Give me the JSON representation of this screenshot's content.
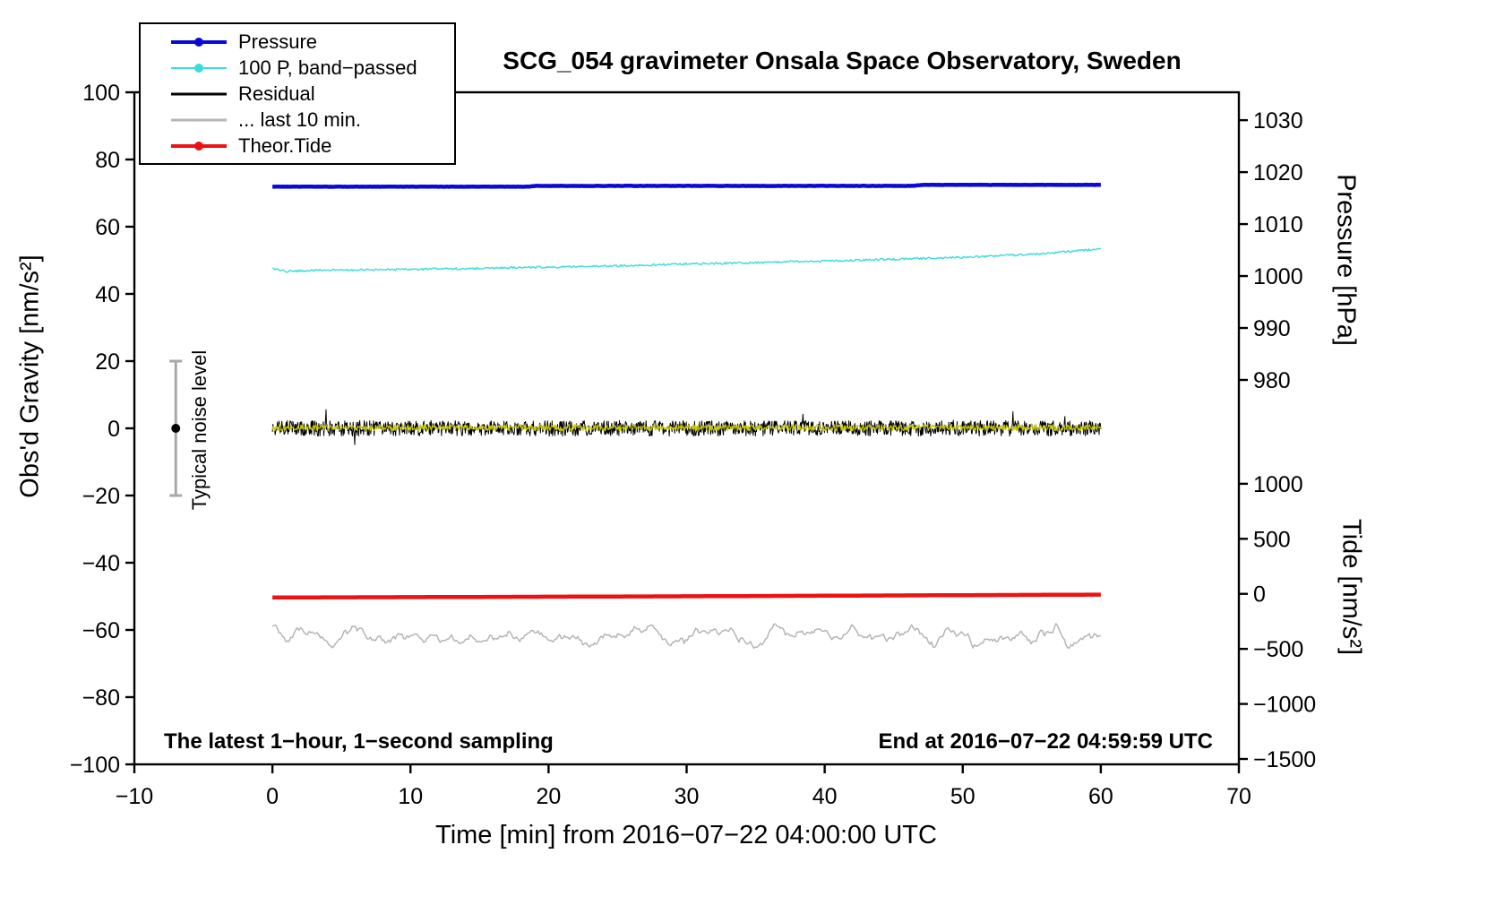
{
  "chart_data": {
    "type": "line",
    "title": "SCG_054 gravimeter Onsala Space Observatory, Sweden",
    "xlabel": "Time [min] from 2016−07−22 04:00:00 UTC",
    "ylabel": "Obs'd Gravity [nm/s²]",
    "xlim": [
      -10,
      70
    ],
    "xticks": [
      -10,
      0,
      10,
      20,
      30,
      40,
      50,
      60,
      70
    ],
    "ylim": [
      -100,
      100
    ],
    "yticks": [
      -100,
      -80,
      -60,
      -40,
      -20,
      0,
      20,
      40,
      60,
      80,
      100
    ],
    "grid": false,
    "legend_position": "top-left",
    "pressure_axis": {
      "label": "Pressure [hPa]",
      "ticks": [
        1030,
        1020,
        1010,
        1000,
        990,
        980
      ],
      "value_to_gravity": {
        "v0": 1030,
        "g0": 91.7,
        "v1": 980,
        "g1": 14.4
      }
    },
    "tide_axis": {
      "label": "Tide [nm/s²]",
      "ticks": [
        1000,
        500,
        0,
        -500,
        -1000,
        -1500
      ],
      "value_to_gravity": {
        "v0": 1000,
        "g0": -16.5,
        "v1": -1500,
        "g1": -98.4
      }
    },
    "annotations": {
      "sampling_note": "The latest 1−hour, 1−second sampling",
      "end_note": "End at 2016−07−22 04:59:59 UTC"
    },
    "noise_marker": {
      "label": "Typical noise level",
      "x": -7,
      "center": 0,
      "half_range": 20
    },
    "legend": {
      "items": [
        {
          "id": "pressure",
          "label": "Pressure",
          "color": "#0a0ad6",
          "dot": true,
          "thickness": 4
        },
        {
          "id": "p-bandpassed",
          "label": "100 P, band−passed",
          "color": "#3adcdc",
          "dot": true,
          "thickness": 2
        },
        {
          "id": "residual",
          "label": "Residual",
          "color": "#000000",
          "dot": false,
          "thickness": 3
        },
        {
          "id": "last-10-min",
          "label": "... last 10 min.",
          "color": "#b5b5b5",
          "dot": false,
          "thickness": 3
        },
        {
          "id": "theor-tide",
          "label": "Theor.Tide",
          "color": "#ee1111",
          "dot": true,
          "thickness": 4
        }
      ]
    },
    "series": [
      {
        "id": "pressure",
        "name": "Pressure",
        "axis": "pressure",
        "unit": "hPa",
        "color": "#0a0ad6",
        "width": 4.5,
        "samples": 400,
        "noise": 0.03,
        "points": [
          [
            0,
            1017.2
          ],
          [
            18.5,
            1017.2
          ],
          [
            19,
            1017.35
          ],
          [
            46.5,
            1017.35
          ],
          [
            47,
            1017.55
          ],
          [
            60,
            1017.55
          ]
        ]
      },
      {
        "id": "p-bandpassed",
        "name": "100 P, band−passed",
        "axis": "gravity",
        "unit": "nm/s²",
        "color": "#3adcdc",
        "width": 1.4,
        "samples": 700,
        "noise": 0.3,
        "points": [
          [
            0,
            47.4
          ],
          [
            1,
            46.7
          ],
          [
            3,
            47.0
          ],
          [
            5,
            47.1
          ],
          [
            10,
            47.3
          ],
          [
            15,
            47.6
          ],
          [
            20,
            48.0
          ],
          [
            25,
            48.4
          ],
          [
            30,
            48.9
          ],
          [
            35,
            49.3
          ],
          [
            40,
            49.8
          ],
          [
            45,
            50.3
          ],
          [
            50,
            50.9
          ],
          [
            55,
            51.8
          ],
          [
            58,
            52.7
          ],
          [
            60,
            53.4
          ]
        ]
      },
      {
        "id": "residual",
        "name": "Residual",
        "axis": "gravity",
        "unit": "nm/s²",
        "color": "#000000",
        "width": 1,
        "samples": 1500,
        "noise": 2.3,
        "spikes": true,
        "points": [
          [
            0,
            0
          ],
          [
            60,
            0
          ]
        ]
      },
      {
        "id": "residual-overlay",
        "name": "Residual (recent, highlighted)",
        "axis": "gravity",
        "unit": "nm/s²",
        "color": "#c8c800",
        "width": 1.2,
        "samples": 1100,
        "noise": 0.9,
        "points": [
          [
            0,
            0.2
          ],
          [
            60,
            0.2
          ]
        ]
      },
      {
        "id": "theor-tide",
        "name": "Theor.Tide",
        "axis": "tide",
        "unit": "nm/s²",
        "color": "#ee1111",
        "width": 4.5,
        "samples": 300,
        "noise": 0,
        "points": [
          [
            0,
            -33
          ],
          [
            10,
            -30
          ],
          [
            20,
            -26
          ],
          [
            30,
            -22
          ],
          [
            40,
            -17
          ],
          [
            50,
            -12
          ],
          [
            60,
            -7
          ]
        ]
      },
      {
        "id": "residual-last10",
        "name": "... last 10 min.",
        "axis": "gravity",
        "unit": "nm/s²",
        "color": "#b5b5b5",
        "width": 1.5,
        "samples": 500,
        "noise": 2.0,
        "smooth": true,
        "points": [
          [
            0,
            -62
          ],
          [
            60,
            -62
          ]
        ]
      }
    ]
  }
}
